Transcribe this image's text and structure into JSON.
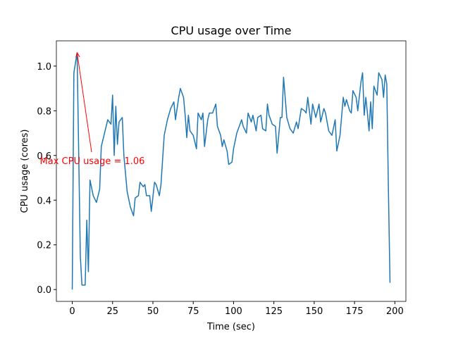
{
  "chart_data": {
    "type": "line",
    "title": "CPU usage over Time",
    "xlabel": "Time (sec)",
    "ylabel": "CPU usage (cores)",
    "color": "#1f77b4",
    "x": [
      0,
      1,
      3,
      5,
      6,
      8,
      9,
      10,
      11,
      13,
      15,
      17,
      18,
      20,
      22,
      24,
      25,
      26,
      27,
      28,
      29,
      31,
      32,
      34,
      36,
      38,
      39,
      41,
      42,
      44,
      45,
      46,
      48,
      49,
      51,
      52,
      54,
      55,
      57,
      59,
      61,
      63,
      64,
      66,
      67,
      69,
      70,
      71,
      72,
      73,
      75,
      77,
      78,
      80,
      81,
      82,
      84,
      85,
      87,
      89,
      90,
      92,
      93,
      94,
      96,
      97,
      99,
      100,
      102,
      104,
      105,
      106,
      108,
      109,
      111,
      112,
      114,
      115,
      117,
      118,
      120,
      121,
      122,
      124,
      126,
      127,
      129,
      130,
      131,
      133,
      135,
      137,
      139,
      140,
      142,
      144,
      145,
      146,
      148,
      149,
      151,
      153,
      154,
      156,
      157,
      159,
      161,
      163,
      164,
      166,
      168,
      169,
      170,
      172,
      173,
      174,
      176,
      177,
      179,
      180,
      181,
      182,
      183,
      184,
      185,
      186,
      187,
      189,
      190,
      192,
      193,
      194,
      195,
      196,
      197
    ],
    "values": [
      0,
      0.97,
      1.06,
      0.15,
      0.02,
      0.02,
      0.31,
      0.08,
      0.49,
      0.42,
      0.39,
      0.45,
      0.64,
      0.7,
      0.76,
      0.74,
      0.87,
      0.6,
      0.82,
      0.65,
      0.75,
      0.77,
      0.6,
      0.44,
      0.37,
      0.33,
      0.41,
      0.42,
      0.48,
      0.46,
      0.47,
      0.42,
      0.42,
      0.35,
      0.48,
      0.47,
      0.42,
      0.47,
      0.69,
      0.76,
      0.81,
      0.84,
      0.76,
      0.86,
      0.9,
      0.86,
      0.78,
      0.68,
      0.78,
      0.71,
      0.69,
      0.63,
      0.79,
      0.76,
      0.79,
      0.64,
      0.76,
      0.79,
      0.79,
      0.83,
      0.73,
      0.69,
      0.64,
      0.67,
      0.62,
      0.56,
      0.57,
      0.63,
      0.7,
      0.74,
      0.76,
      0.73,
      0.7,
      0.79,
      0.75,
      0.78,
      0.71,
      0.77,
      0.78,
      0.72,
      0.71,
      0.83,
      0.78,
      0.74,
      0.73,
      0.61,
      0.77,
      0.77,
      0.95,
      0.77,
      0.72,
      0.7,
      0.75,
      0.72,
      0.81,
      0.8,
      0.79,
      0.86,
      0.74,
      0.83,
      0.77,
      0.83,
      0.75,
      0.81,
      0.79,
      0.71,
      0.69,
      0.76,
      0.62,
      0.69,
      0.86,
      0.82,
      0.85,
      0.8,
      0.79,
      0.89,
      0.86,
      0.8,
      0.93,
      0.97,
      0.78,
      0.86,
      0.79,
      0.71,
      0.84,
      0.72,
      0.91,
      0.87,
      0.97,
      0.94,
      0.86,
      0.96,
      0.92,
      0.45,
      0.03
    ],
    "xlim": [
      -9.85,
      206.85
    ],
    "ylim": [
      -0.053,
      1.113
    ],
    "xticks": [
      0,
      25,
      50,
      75,
      100,
      125,
      150,
      175,
      200
    ],
    "yticks": [
      {
        "value": 0,
        "label": "0.0"
      },
      0.2,
      0.4,
      0.6,
      0.8,
      {
        "value": 1,
        "label": "1.0"
      }
    ],
    "annotation": {
      "text": "Max CPU usage = 1.06",
      "x": 3,
      "y": 1.06,
      "color": "red"
    }
  }
}
